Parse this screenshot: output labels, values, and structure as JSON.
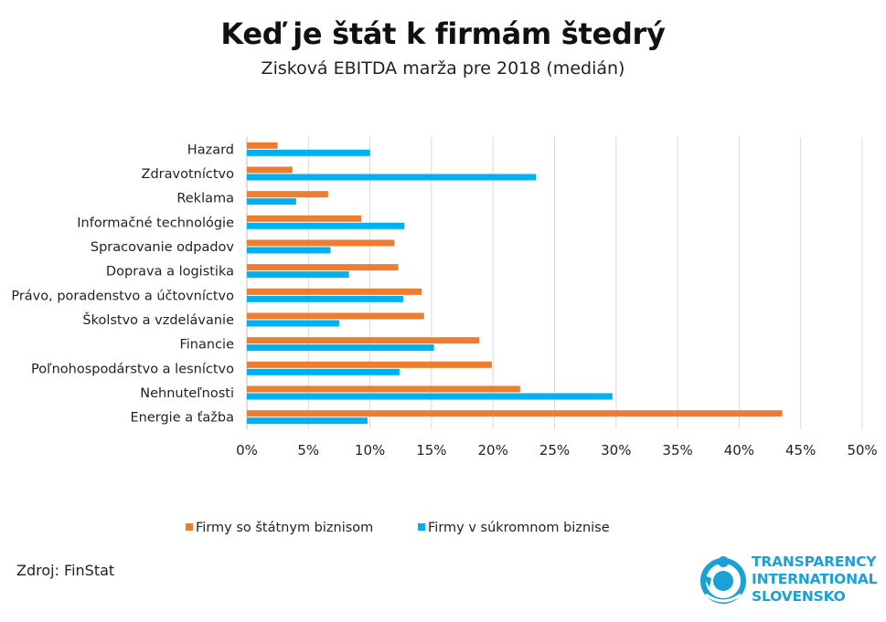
{
  "title": "Keď je štát k firmám štedrý",
  "subtitle": "Zisková EBITDA marža pre 2018 (medián)",
  "source": "Zdroj: FinStat",
  "logo": {
    "lines": [
      "TRANSPARENCY",
      "INTERNATIONAL",
      "SLOVENSKO"
    ]
  },
  "colors": {
    "state": "#ed7d31",
    "private": "#00b0f0",
    "grid": "#d9d9d9",
    "logo": "#1ba1d8"
  },
  "chart_data": {
    "type": "bar",
    "orientation": "horizontal",
    "categories": [
      "Hazard",
      "Zdravotníctvo",
      "Reklama",
      "Informačné technológie",
      "Spracovanie odpadov",
      "Doprava a logistika",
      "Právo, poradenstvo a účtovníctvo",
      "Školstvo a vzdelávanie",
      "Financie",
      "Poľnohospodárstvo a lesníctvo",
      "Nehnuteľnosti",
      "Energie a ťažba"
    ],
    "series": [
      {
        "name": "Firmy so štátnym biznisom",
        "color": "#ed7d31",
        "values": [
          2.5,
          3.7,
          6.6,
          9.3,
          12.0,
          12.3,
          14.2,
          14.4,
          18.9,
          19.9,
          22.2,
          43.5
        ]
      },
      {
        "name": "Firmy v súkromnom biznise",
        "color": "#00b0f0",
        "values": [
          10.0,
          23.5,
          4.0,
          12.8,
          6.8,
          8.3,
          12.7,
          7.5,
          15.2,
          12.4,
          29.7,
          9.8
        ]
      }
    ],
    "xlim": [
      0,
      50
    ],
    "xticks": [
      "0%",
      "5%",
      "10%",
      "15%",
      "20%",
      "25%",
      "30%",
      "35%",
      "40%",
      "45%",
      "50%"
    ],
    "xlabel": "",
    "ylabel": "",
    "grid": "vertical",
    "legend_position": "bottom"
  }
}
